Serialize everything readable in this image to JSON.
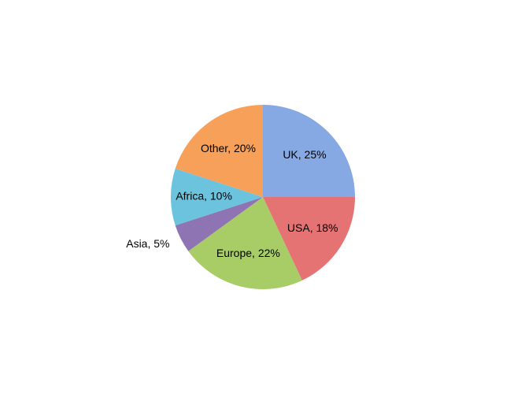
{
  "chart_data": {
    "type": "pie",
    "values": [
      25,
      18,
      22,
      5,
      10,
      20
    ],
    "value_labels": [
      "UK, 25%",
      "USA, 18%",
      "Europe, 22%",
      "Asia, 5%",
      "Africa, 10%",
      "Other, 20%"
    ],
    "colors": [
      "#86a9e3",
      "#e57373",
      "#a8cc66",
      "#8f74b3",
      "#6cc3dd",
      "#f7a05a"
    ]
  }
}
